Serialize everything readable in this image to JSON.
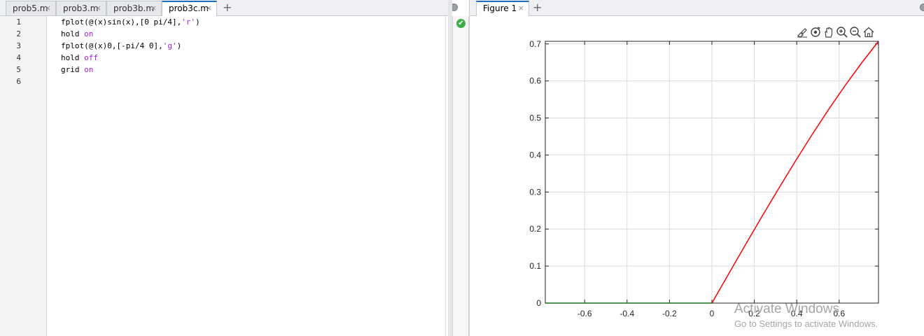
{
  "editor": {
    "tabs": [
      {
        "label": "prob5.m",
        "close": "×"
      },
      {
        "label": "prob3.m",
        "close": "×"
      },
      {
        "label": "prob3b.m",
        "close": "×"
      },
      {
        "label": "prob3c.m",
        "close": "×",
        "active": true
      }
    ],
    "add_tab": "+",
    "line_numbers": [
      "1",
      "2",
      "3",
      "4",
      "5",
      "6"
    ],
    "code": [
      {
        "pre": "fplot(@(x)sin(x),[0 pi/4],",
        "str": "'r'",
        "post": ")"
      },
      {
        "pre": "hold ",
        "kw": "on"
      },
      {
        "pre": "fplot(@(x)0,[-pi/4 0],",
        "str": "'g'",
        "post": ")"
      },
      {
        "pre": "hold ",
        "kw": "off"
      },
      {
        "pre": "grid ",
        "kw": "on"
      },
      {
        "pre": ""
      }
    ],
    "analyzer_status": "✔"
  },
  "figure": {
    "tab_label": "Figure 1",
    "tab_close": "×",
    "add_tab": "+",
    "toolbar_icons": [
      "brush-icon",
      "rotate-icon",
      "pan-hand-icon",
      "zoom-in-icon",
      "zoom-out-icon",
      "home-icon"
    ]
  },
  "chart_data": {
    "type": "line",
    "title": "",
    "xlabel": "",
    "ylabel": "",
    "xlim": [
      -0.7854,
      0.7854
    ],
    "ylim": [
      0,
      0.7071
    ],
    "xticks": [
      -0.6,
      -0.4,
      -0.2,
      0,
      0.2,
      0.4,
      0.6
    ],
    "xtick_labels": [
      "-0.6",
      "-0.4",
      "-0.2",
      "0",
      "0.2",
      "0.4",
      "0.6"
    ],
    "yticks": [
      0,
      0.1,
      0.2,
      0.3,
      0.4,
      0.5,
      0.6,
      0.7
    ],
    "ytick_labels": [
      "0",
      "0.1",
      "0.2",
      "0.3",
      "0.4",
      "0.5",
      "0.6",
      "0.7"
    ],
    "grid": true,
    "series": [
      {
        "color": "#ff0000",
        "x": [
          0,
          0.0785,
          0.1571,
          0.2356,
          0.3142,
          0.3927,
          0.4712,
          0.5498,
          0.6283,
          0.7069,
          0.7854
        ],
        "y": [
          0,
          0.0785,
          0.1564,
          0.2334,
          0.309,
          0.3827,
          0.454,
          0.5225,
          0.5878,
          0.6494,
          0.7071
        ]
      },
      {
        "color": "#00ff00",
        "x": [
          -0.7854,
          0
        ],
        "y": [
          0,
          0
        ]
      }
    ]
  },
  "watermark": {
    "line1": "Activate Windows",
    "line2": "Go to Settings to activate Windows."
  }
}
